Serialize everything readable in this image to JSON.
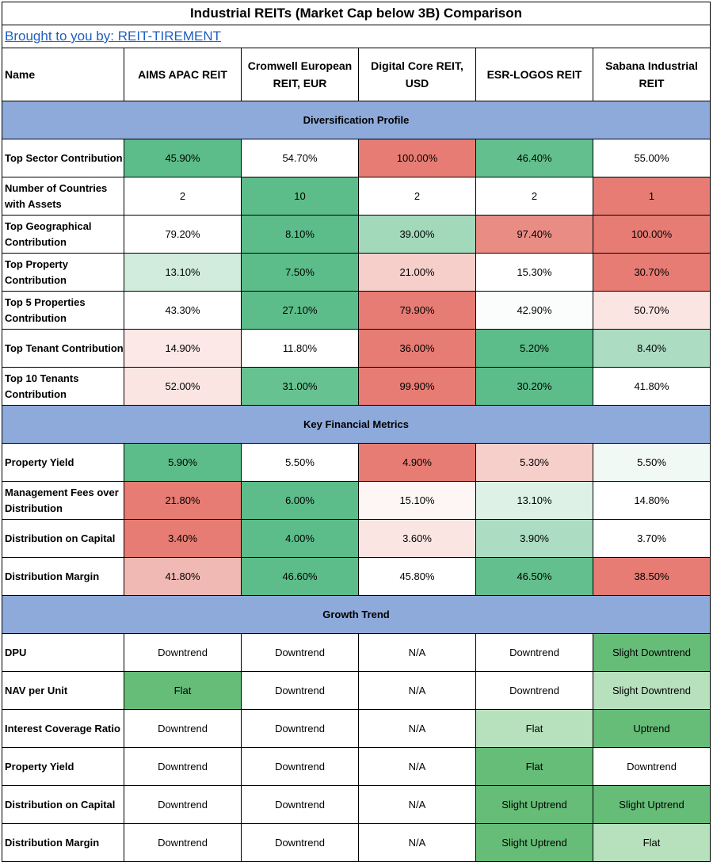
{
  "title": "Industrial REITs (Market Cap below 3B) Comparison",
  "link_text": "Brought to you by: REIT-TIREMENT",
  "header": {
    "name_label": "Name",
    "columns": [
      "AIMS APAC REIT",
      "Cromwell European REIT, EUR",
      "Digital Core REIT, USD",
      "ESR-LOGOS REIT",
      "Sabana Industrial REIT"
    ]
  },
  "sections": [
    {
      "title": "Diversification Profile",
      "rows": [
        {
          "label": "Top Sector Contribution",
          "cells": [
            {
              "value": "45.90%",
              "color": "#5cbd8a"
            },
            {
              "value": "54.70%",
              "color": "#ffffff"
            },
            {
              "value": "100.00%",
              "color": "#e67c73"
            },
            {
              "value": "46.40%",
              "color": "#63c08e"
            },
            {
              "value": "55.00%",
              "color": "#ffffff"
            }
          ]
        },
        {
          "label": "Number of Countries with Assets",
          "cells": [
            {
              "value": "2",
              "color": "#ffffff"
            },
            {
              "value": "10",
              "color": "#5cbd8a"
            },
            {
              "value": "2",
              "color": "#ffffff"
            },
            {
              "value": "2",
              "color": "#ffffff"
            },
            {
              "value": "1",
              "color": "#e67c73"
            }
          ]
        },
        {
          "label": "Top Geographical Contribution",
          "cells": [
            {
              "value": "79.20%",
              "color": "#ffffff"
            },
            {
              "value": "8.10%",
              "color": "#5cbd8a"
            },
            {
              "value": "39.00%",
              "color": "#a3d9bb"
            },
            {
              "value": "97.40%",
              "color": "#e98d84"
            },
            {
              "value": "100.00%",
              "color": "#e67c73"
            }
          ]
        },
        {
          "label": "Top Property Contribution",
          "cells": [
            {
              "value": "13.10%",
              "color": "#d1ecdc"
            },
            {
              "value": "7.50%",
              "color": "#5cbd8a"
            },
            {
              "value": "21.00%",
              "color": "#f6cfcb"
            },
            {
              "value": "15.30%",
              "color": "#ffffff"
            },
            {
              "value": "30.70%",
              "color": "#e67c73"
            }
          ]
        },
        {
          "label": "Top 5 Properties Contribution",
          "cells": [
            {
              "value": "43.30%",
              "color": "#ffffff"
            },
            {
              "value": "27.10%",
              "color": "#5cbd8a"
            },
            {
              "value": "79.90%",
              "color": "#e67c73"
            },
            {
              "value": "42.90%",
              "color": "#fbfdfc"
            },
            {
              "value": "50.70%",
              "color": "#fbe5e3"
            }
          ]
        },
        {
          "label": "Top Tenant Contribution",
          "cells": [
            {
              "value": "14.90%",
              "color": "#fce8e6"
            },
            {
              "value": "11.80%",
              "color": "#ffffff"
            },
            {
              "value": "36.00%",
              "color": "#e67c73"
            },
            {
              "value": "5.20%",
              "color": "#5cbd8a"
            },
            {
              "value": "8.40%",
              "color": "#acdcc2"
            }
          ]
        },
        {
          "label": "Top 10 Tenants Contribution",
          "cells": [
            {
              "value": "52.00%",
              "color": "#fbe5e3"
            },
            {
              "value": "31.00%",
              "color": "#67c291"
            },
            {
              "value": "99.90%",
              "color": "#e67c73"
            },
            {
              "value": "30.20%",
              "color": "#5cbd8a"
            },
            {
              "value": "41.80%",
              "color": "#ffffff"
            }
          ]
        }
      ]
    },
    {
      "title": "Key Financial Metrics",
      "rows": [
        {
          "label": "Property Yield",
          "cells": [
            {
              "value": "5.90%",
              "color": "#5cbd8a"
            },
            {
              "value": "5.50%",
              "color": "#ffffff"
            },
            {
              "value": "4.90%",
              "color": "#e67c73"
            },
            {
              "value": "5.30%",
              "color": "#f6cfcb"
            },
            {
              "value": "5.50%",
              "color": "#f1f9f4"
            }
          ]
        },
        {
          "label": "Management Fees over Distribution",
          "cells": [
            {
              "value": "21.80%",
              "color": "#e67c73"
            },
            {
              "value": "6.00%",
              "color": "#5cbd8a"
            },
            {
              "value": "15.10%",
              "color": "#fdf6f5"
            },
            {
              "value": "13.10%",
              "color": "#ddf1e6"
            },
            {
              "value": "14.80%",
              "color": "#ffffff"
            }
          ]
        },
        {
          "label": "Distribution on Capital",
          "cells": [
            {
              "value": "3.40%",
              "color": "#e67c73"
            },
            {
              "value": "4.00%",
              "color": "#5cbd8a"
            },
            {
              "value": "3.60%",
              "color": "#fbe5e3"
            },
            {
              "value": "3.90%",
              "color": "#acdcc2"
            },
            {
              "value": "3.70%",
              "color": "#ffffff"
            }
          ]
        },
        {
          "label": "Distribution Margin",
          "cells": [
            {
              "value": "41.80%",
              "color": "#f1b9b3"
            },
            {
              "value": "46.60%",
              "color": "#5cbd8a"
            },
            {
              "value": "45.80%",
              "color": "#ffffff"
            },
            {
              "value": "46.50%",
              "color": "#63c08e"
            },
            {
              "value": "38.50%",
              "color": "#e67c73"
            }
          ]
        }
      ]
    },
    {
      "title": "Growth Trend",
      "rows": [
        {
          "label": "DPU",
          "cells": [
            {
              "value": "Downtrend",
              "color": "#ffffff"
            },
            {
              "value": "Downtrend",
              "color": "#ffffff"
            },
            {
              "value": "N/A",
              "color": "#ffffff"
            },
            {
              "value": "Downtrend",
              "color": "#ffffff"
            },
            {
              "value": "Slight Downtrend",
              "color": "#66bd78"
            }
          ]
        },
        {
          "label": "NAV per Unit",
          "cells": [
            {
              "value": "Flat",
              "color": "#66bd78"
            },
            {
              "value": "Downtrend",
              "color": "#ffffff"
            },
            {
              "value": "N/A",
              "color": "#ffffff"
            },
            {
              "value": "Downtrend",
              "color": "#ffffff"
            },
            {
              "value": "Slight Downtrend",
              "color": "#b7e0bd"
            }
          ]
        },
        {
          "label": "Interest Coverage Ratio",
          "cells": [
            {
              "value": "Downtrend",
              "color": "#ffffff"
            },
            {
              "value": "Downtrend",
              "color": "#ffffff"
            },
            {
              "value": "N/A",
              "color": "#ffffff"
            },
            {
              "value": "Flat",
              "color": "#b7e0bd"
            },
            {
              "value": "Uptrend",
              "color": "#66bd78"
            }
          ]
        },
        {
          "label": "Property Yield",
          "cells": [
            {
              "value": "Downtrend",
              "color": "#ffffff"
            },
            {
              "value": "Downtrend",
              "color": "#ffffff"
            },
            {
              "value": "N/A",
              "color": "#ffffff"
            },
            {
              "value": "Flat",
              "color": "#66bd78"
            },
            {
              "value": "Downtrend",
              "color": "#ffffff"
            }
          ]
        },
        {
          "label": "Distribution on Capital",
          "cells": [
            {
              "value": "Downtrend",
              "color": "#ffffff"
            },
            {
              "value": "Downtrend",
              "color": "#ffffff"
            },
            {
              "value": "N/A",
              "color": "#ffffff"
            },
            {
              "value": "Slight Uptrend",
              "color": "#66bd78"
            },
            {
              "value": "Slight Uptrend",
              "color": "#66bd78"
            }
          ]
        },
        {
          "label": "Distribution Margin",
          "cells": [
            {
              "value": "Downtrend",
              "color": "#ffffff"
            },
            {
              "value": "Downtrend",
              "color": "#ffffff"
            },
            {
              "value": "N/A",
              "color": "#ffffff"
            },
            {
              "value": "Slight Uptrend",
              "color": "#66bd78"
            },
            {
              "value": "Flat",
              "color": "#b7e0bd"
            }
          ]
        }
      ]
    }
  ]
}
